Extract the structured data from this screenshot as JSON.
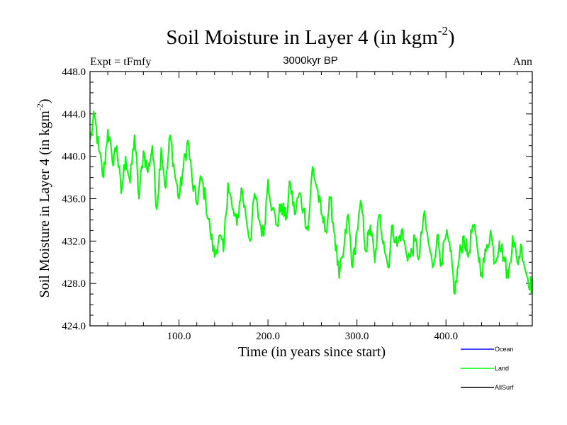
{
  "chart_data": {
    "type": "line",
    "title": "Soil Moisture in Layer 4 (in kgm",
    "title_sup": "-2",
    "title_end": ")",
    "subtitle": "3000kyr BP",
    "left_label": "Expt = tFmfy",
    "right_label": "Ann",
    "xlabel": "Time (in years since start)",
    "ylabel": "Soil Moisture in Layer 4 (in kgm",
    "ylabel_sup": "-2",
    "ylabel_end": ")",
    "xlim": [
      0,
      497
    ],
    "ylim": [
      424.0,
      448.0
    ],
    "x_ticks": [
      100,
      200,
      300,
      400
    ],
    "x_tick_labels": [
      "100.0",
      "200.0",
      "300.0",
      "400.0"
    ],
    "y_ticks": [
      424,
      428,
      432,
      436,
      440,
      444,
      448
    ],
    "y_tick_labels": [
      "424.0",
      "428.0",
      "432.0",
      "436.0",
      "440.0",
      "444.0",
      "448.0"
    ],
    "legend": [
      {
        "name": "Ocean",
        "color": "#0000ff"
      },
      {
        "name": "Land",
        "color": "#00ff00"
      },
      {
        "name": "AllSurf",
        "color": "#000000"
      }
    ],
    "series": [
      {
        "name": "Land",
        "color": "#00ff00",
        "x_start": 0,
        "x_step": 5,
        "values": [
          441.5,
          443.8,
          440.5,
          438.0,
          442.5,
          439.5,
          441.0,
          436.5,
          440.0,
          437.5,
          442.0,
          436.0,
          440.5,
          438.5,
          441.0,
          435.0,
          440.8,
          437.0,
          442.0,
          438.5,
          436.0,
          439.0,
          441.5,
          437.5,
          435.5,
          438.0,
          435.8,
          433.0,
          430.5,
          432.5,
          431.0,
          437.5,
          435.0,
          433.5,
          437.0,
          434.5,
          432.0,
          436.5,
          434.0,
          432.5,
          437.8,
          435.0,
          433.5,
          435.5,
          434.0,
          437.5,
          434.5,
          436.5,
          435.0,
          433.0,
          439.0,
          437.0,
          434.5,
          433.0,
          436.0,
          432.5,
          428.5,
          431.0,
          434.5,
          429.5,
          433.0,
          435.5,
          431.0,
          433.5,
          430.0,
          434.5,
          432.0,
          429.5,
          433.5,
          431.5,
          433.0,
          431.0,
          430.5,
          432.0,
          430.5,
          434.5,
          432.0,
          429.5,
          432.5,
          430.0,
          432.5,
          431.0,
          427.0,
          430.5,
          432.5,
          430.5,
          433.5,
          431.5,
          429.0,
          431.0,
          433.0,
          430.0,
          432.0,
          430.5,
          428.5,
          432.5,
          430.0,
          431.5,
          429.0,
          428.0
        ],
        "end_value": 427.5
      }
    ]
  }
}
